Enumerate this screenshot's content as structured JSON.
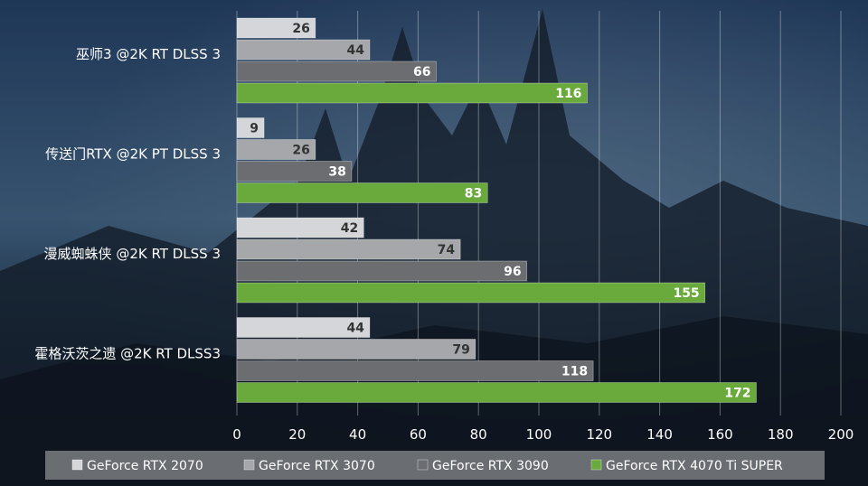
{
  "chart_data": {
    "type": "bar",
    "orientation": "horizontal",
    "categories": [
      "巫师3 @2K RT DLSS 3",
      "传送门RTX @2K PT DLSS 3",
      "漫威蜘蛛侠 @2K RT DLSS 3",
      "霍格沃茨之遗 @2K RT DLSS3"
    ],
    "series": [
      {
        "name": "GeForce RTX 2070",
        "color": "#d4d6da",
        "values": [
          26,
          9,
          42,
          44
        ]
      },
      {
        "name": "GeForce RTX 3070",
        "color": "#a5a7ab",
        "values": [
          44,
          26,
          74,
          79
        ]
      },
      {
        "name": "GeForce RTX 3090",
        "color": "#6b6d71",
        "values": [
          66,
          38,
          96,
          118
        ]
      },
      {
        "name": "GeForce RTX 4070 Ti SUPER",
        "color": "#6aaa3c",
        "values": [
          116,
          83,
          155,
          172
        ]
      }
    ],
    "xlim": [
      0,
      200
    ],
    "xticks": [
      "0",
      "20",
      "40",
      "60",
      "80",
      "100",
      "120",
      "140",
      "160",
      "180",
      "200"
    ],
    "grid": true,
    "legend_position": "bottom",
    "data_labels": true
  }
}
